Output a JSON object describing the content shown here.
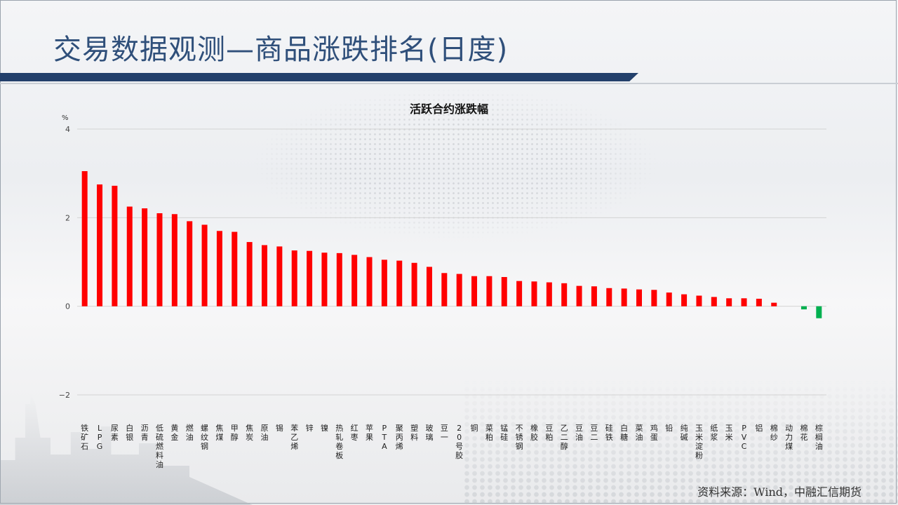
{
  "header": {
    "title": "交易数据观测—商品涨跌排名(日度)"
  },
  "source": "资料来源：Wind，中融汇信期货",
  "colors": {
    "positive": "#ff0000",
    "negative": "#00b050",
    "title": "#2f4f7a",
    "bar": "#23406b"
  },
  "chart_data": {
    "type": "bar",
    "title": "活跃合约涨跌幅",
    "ylabel": "%",
    "ylim": [
      -2,
      4
    ],
    "yticks": [
      -2,
      0,
      2,
      4
    ],
    "grid": true,
    "categories": [
      "铁矿石",
      "LPG",
      "尿素",
      "白银",
      "沥青",
      "低硫燃料油",
      "黄金",
      "燃油",
      "螺纹钢",
      "焦煤",
      "甲醇",
      "焦炭",
      "原油",
      "锡",
      "苯乙烯",
      "锌",
      "镍",
      "热轧卷板",
      "红枣",
      "苹果",
      "PTA",
      "聚丙烯",
      "塑料",
      "玻璃",
      "豆一",
      "20号胶",
      "铜",
      "菜粕",
      "锰硅",
      "不锈钢",
      "橡胶",
      "豆粕",
      "乙二醇",
      "豆油",
      "豆二",
      "硅铁",
      "白糖",
      "菜油",
      "鸡蛋",
      "铅",
      "纯碱",
      "玉米淀粉",
      "纸浆",
      "玉米",
      "PVC",
      "铝",
      "棉纱",
      "动力煤",
      "棉花",
      "棕榈油"
    ],
    "values": [
      3.05,
      2.75,
      2.72,
      2.25,
      2.21,
      2.1,
      2.08,
      1.92,
      1.84,
      1.7,
      1.68,
      1.45,
      1.38,
      1.35,
      1.26,
      1.25,
      1.21,
      1.2,
      1.16,
      1.11,
      1.05,
      1.03,
      0.98,
      0.89,
      0.75,
      0.73,
      0.68,
      0.68,
      0.66,
      0.57,
      0.56,
      0.54,
      0.52,
      0.46,
      0.45,
      0.41,
      0.4,
      0.38,
      0.37,
      0.31,
      0.27,
      0.24,
      0.21,
      0.18,
      0.18,
      0.17,
      0.08,
      0.0,
      -0.07,
      -0.27
    ]
  }
}
